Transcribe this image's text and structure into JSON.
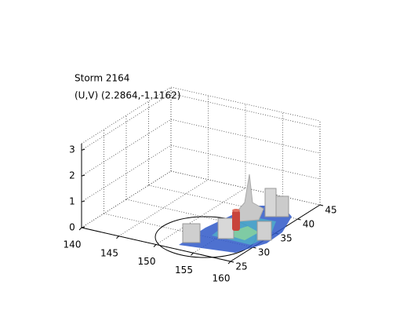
{
  "chart_data": {
    "type": "surface3d",
    "title": "Storm 2164",
    "subtitle": "(U,V) (2.2864,-1.1162)",
    "xlim": [
      140,
      160
    ],
    "xticks": [
      140,
      145,
      150,
      155,
      160
    ],
    "ylim": [
      25,
      45
    ],
    "yticks": [
      25,
      30,
      35,
      40,
      45
    ],
    "zlim": [
      0,
      3.25
    ],
    "zticks": [
      0,
      1,
      2,
      3
    ],
    "grid": true
  }
}
